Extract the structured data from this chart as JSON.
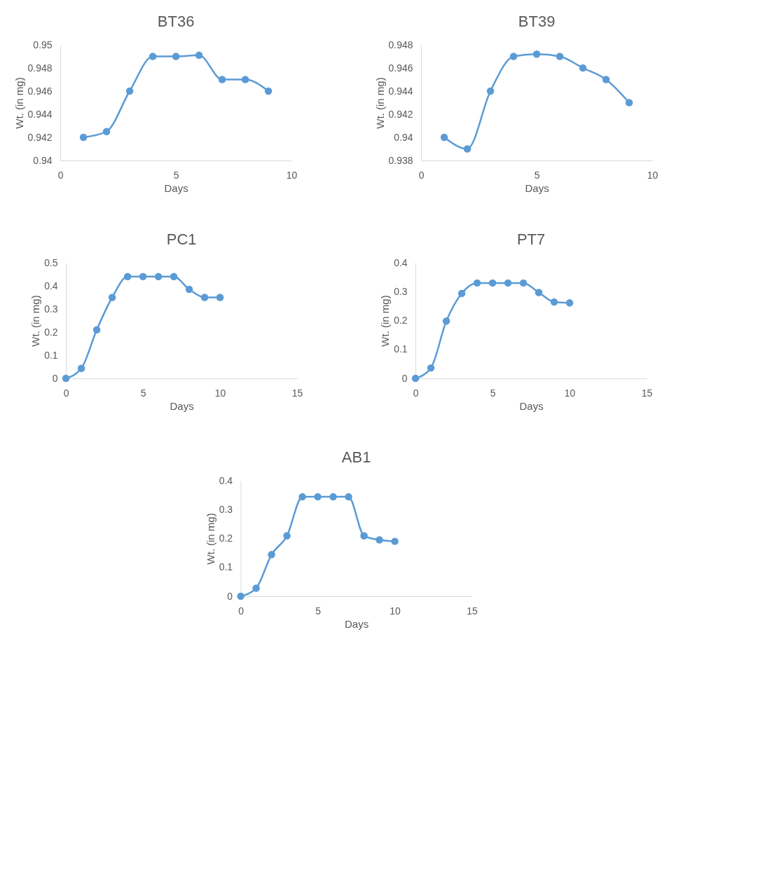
{
  "chart_data": [
    {
      "type": "line",
      "title": "BT36",
      "xlabel": "Days",
      "ylabel": "Wt. (in mg)",
      "x": [
        1,
        2,
        3,
        4,
        5,
        6,
        7,
        8,
        9
      ],
      "xlim": [
        0,
        10
      ],
      "xticks": [
        0,
        5,
        10
      ],
      "ylim": [
        0.94,
        0.95
      ],
      "yticks": [
        0.94,
        0.942,
        0.944,
        0.946,
        0.948,
        0.95
      ],
      "marker": "circle",
      "grid": false,
      "series": [
        {
          "color": "#5b9bd5",
          "values": [
            0.942,
            0.9425,
            0.946,
            0.949,
            0.949,
            0.9491,
            0.947,
            0.947,
            0.946
          ]
        }
      ]
    },
    {
      "type": "line",
      "title": "BT39",
      "xlabel": "Days",
      "ylabel": "Wt. (in mg)",
      "x": [
        1,
        2,
        3,
        4,
        5,
        6,
        7,
        8,
        9
      ],
      "xlim": [
        0,
        10
      ],
      "xticks": [
        0,
        5,
        10
      ],
      "ylim": [
        0.938,
        0.948
      ],
      "yticks": [
        0.938,
        0.94,
        0.942,
        0.944,
        0.946,
        0.948
      ],
      "marker": "circle",
      "grid": false,
      "series": [
        {
          "color": "#5b9bd5",
          "values": [
            0.94,
            0.939,
            0.944,
            0.947,
            0.9472,
            0.947,
            0.946,
            0.945,
            0.943
          ]
        }
      ]
    },
    {
      "type": "line",
      "title": "PC1",
      "xlabel": "Days",
      "ylabel": "Wt. (in mg)",
      "x": [
        0,
        1,
        2,
        3,
        4,
        5,
        6,
        7,
        8,
        9,
        10
      ],
      "xlim": [
        0,
        15
      ],
      "xticks": [
        0,
        5,
        10,
        15
      ],
      "ylim": [
        0,
        0.5
      ],
      "yticks": [
        0,
        0.1,
        0.2,
        0.3,
        0.4,
        0.5
      ],
      "marker": "circle",
      "grid": false,
      "series": [
        {
          "color": "#5b9bd5",
          "values": [
            0,
            0.043,
            0.21,
            0.35,
            0.44,
            0.44,
            0.44,
            0.44,
            0.385,
            0.35,
            0.35
          ]
        }
      ]
    },
    {
      "type": "line",
      "title": "PT7",
      "xlabel": "Days",
      "ylabel": "Wt. (in mg)",
      "x": [
        0,
        1,
        2,
        3,
        4,
        5,
        6,
        7,
        8,
        9,
        10
      ],
      "xlim": [
        0,
        15
      ],
      "xticks": [
        0,
        5,
        10,
        15
      ],
      "ylim": [
        0,
        0.4
      ],
      "yticks": [
        0,
        0.1,
        0.2,
        0.3,
        0.4
      ],
      "marker": "circle",
      "grid": false,
      "series": [
        {
          "color": "#5b9bd5",
          "values": [
            0,
            0.036,
            0.198,
            0.294,
            0.33,
            0.33,
            0.33,
            0.33,
            0.297,
            0.264,
            0.261
          ]
        }
      ]
    },
    {
      "type": "line",
      "title": "AB1",
      "xlabel": "Days",
      "ylabel": "Wt. (in mg)",
      "x": [
        0,
        1,
        2,
        3,
        4,
        5,
        6,
        7,
        8,
        9,
        10
      ],
      "xlim": [
        0,
        15
      ],
      "xticks": [
        0,
        5,
        10,
        15
      ],
      "ylim": [
        0,
        0.4
      ],
      "yticks": [
        0,
        0.1,
        0.2,
        0.3,
        0.4
      ],
      "marker": "circle",
      "grid": false,
      "series": [
        {
          "color": "#5b9bd5",
          "values": [
            0,
            0.028,
            0.144,
            0.209,
            0.344,
            0.344,
            0.344,
            0.344,
            0.209,
            0.195,
            0.19
          ]
        }
      ]
    }
  ]
}
